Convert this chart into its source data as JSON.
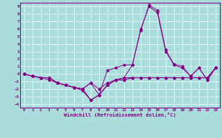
{
  "xlabel": "Windchill (Refroidissement éolien,°C)",
  "bg_color": "#aadcdc",
  "line_color": "#880088",
  "xlim": [
    -0.5,
    23.5
  ],
  "ylim": [
    -4.5,
    9.5
  ],
  "xticks": [
    0,
    1,
    2,
    3,
    4,
    5,
    6,
    7,
    8,
    9,
    10,
    11,
    12,
    13,
    14,
    15,
    16,
    17,
    18,
    19,
    20,
    21,
    22,
    23
  ],
  "yticks": [
    -4,
    -3,
    -2,
    -1,
    0,
    1,
    2,
    3,
    4,
    5,
    6,
    7,
    8,
    9
  ],
  "grid_color": "#ffffff",
  "line1": [
    0.0,
    -0.3,
    -0.5,
    -0.5,
    -1.2,
    -1.5,
    -1.8,
    -2.0,
    -3.5,
    -2.8,
    0.5,
    0.8,
    1.2,
    1.2,
    5.8,
    9.2,
    8.5,
    3.2,
    1.3,
    1.0,
    -0.3,
    0.8,
    -0.8,
    0.8
  ],
  "line2": [
    0.0,
    -0.3,
    -0.5,
    -0.5,
    -1.2,
    -1.5,
    -1.8,
    -2.0,
    -3.5,
    -2.8,
    -1.5,
    -0.8,
    -0.8,
    -0.5,
    -0.5,
    -0.5,
    -0.5,
    -0.5,
    -0.5,
    -0.5,
    -0.5,
    -0.5,
    -0.5,
    0.8
  ],
  "line3": [
    0.0,
    -0.3,
    -0.5,
    -0.5,
    -1.2,
    -1.5,
    -1.8,
    -2.0,
    -1.2,
    -2.8,
    -1.5,
    -0.8,
    -0.8,
    -0.5,
    -0.5,
    -0.5,
    -0.5,
    -0.5,
    -0.5,
    -0.5,
    -0.5,
    -0.5,
    -0.5,
    0.8
  ],
  "line4": [
    0.0,
    -0.3,
    -0.5,
    -0.5,
    -1.2,
    -1.5,
    -1.8,
    -2.0,
    -1.2,
    -2.0,
    -1.2,
    -0.8,
    -0.5,
    -0.5,
    -0.5,
    -0.5,
    -0.5,
    -0.5,
    -0.5,
    -0.5,
    -0.5,
    -0.5,
    -0.5,
    0.8
  ],
  "line5": [
    0.0,
    -0.3,
    -0.5,
    -0.8,
    -1.2,
    -1.5,
    -1.8,
    -2.2,
    -3.5,
    -2.8,
    -1.5,
    -0.8,
    -0.5,
    1.2,
    6.0,
    9.0,
    8.2,
    3.0,
    1.2,
    0.8,
    -0.3,
    0.8,
    -0.8,
    0.8
  ]
}
